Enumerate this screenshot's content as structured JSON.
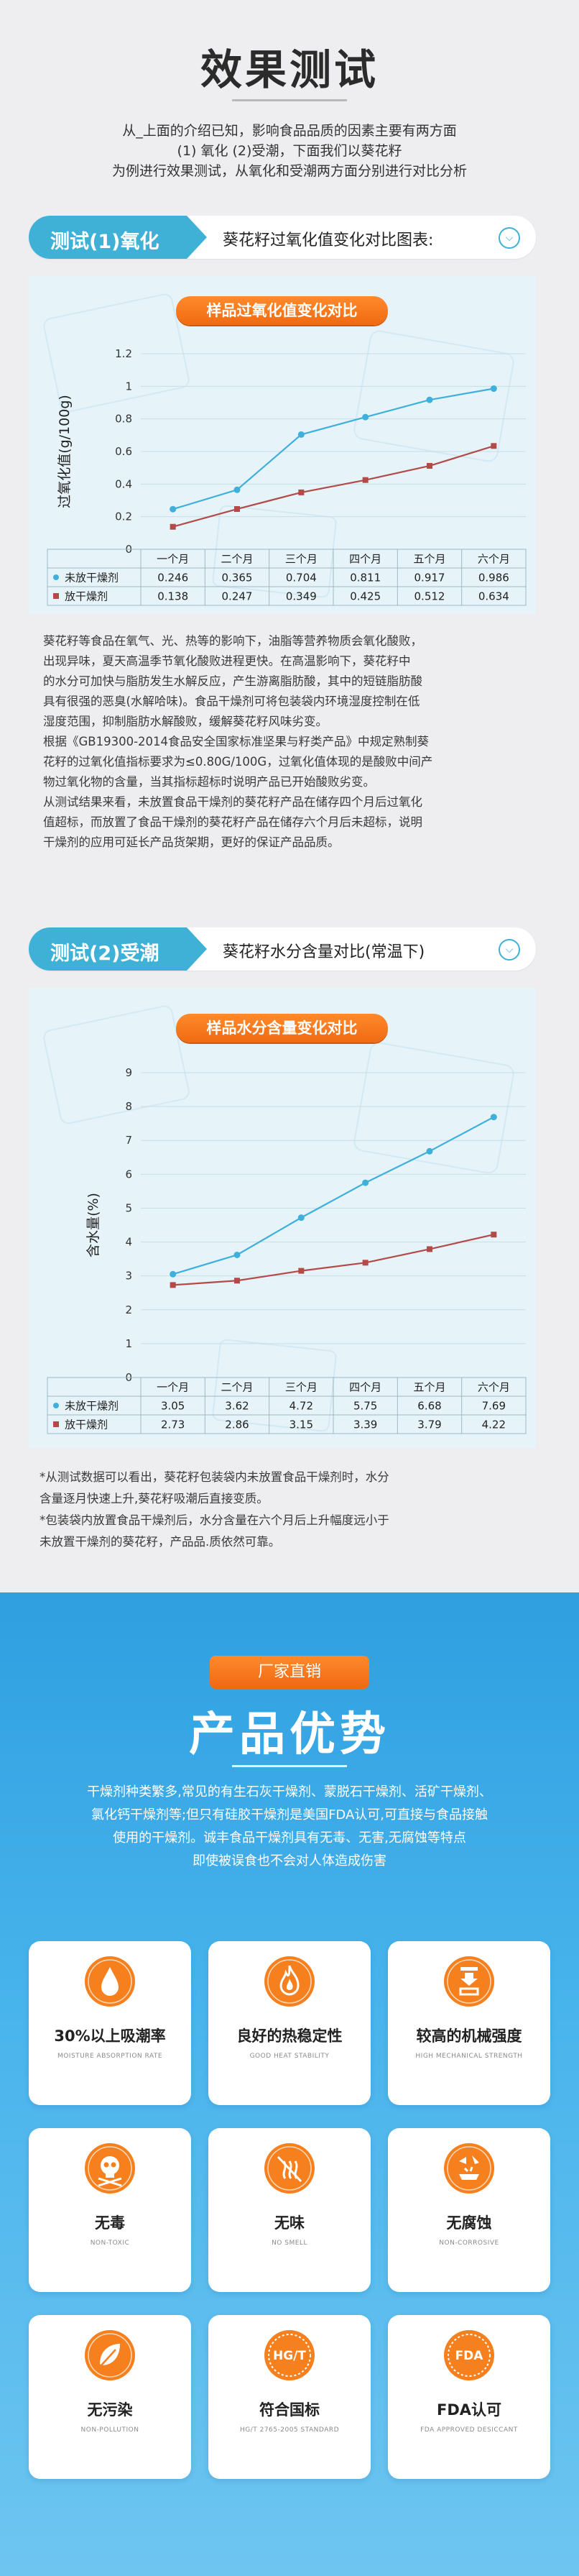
{
  "header": {
    "title": "效果测试",
    "intro_lines": [
      "从_上面的介绍已知，影响食品品质的因素主要有两方面",
      "(1) 氧化  (2)受潮，下面我们以葵花籽",
      "为例进行效果测试，从氧化和受潮两方面分别进行对比分析"
    ]
  },
  "section1": {
    "tag": "测试(1)氧化",
    "desc": "葵花籽过氧化值变化对比图表:",
    "chart_title": "样品过氧化值变化对比",
    "paragraphs": [
      "葵花籽等食品在氧气、光、热等的影响下，油脂等营养物质会氧化酸败，",
      "出现异味，夏天高温季节氧化酸败进程更快。在高温影响下，葵花籽中",
      "的水分可加快与脂肪发生水解反应，产生游离脂肪酸，其中的短链脂肪酸",
      "具有很强的恶臭(水解哈味)。食品干燥剂可将包装袋内环境湿度控制在低",
      "湿度范围，抑制脂肪水解酸败，缓解葵花籽风味劣变。",
      "根据《GB19300-2014食品安全国家标准坚果与籽类产品》中规定熟制葵",
      "花籽的过氧化值指标要求为≤0.80G/100G，过氧化值体现的是酸败中间产",
      "物过氧化物的含量，当其指标超标时说明产品已开始酸败劣变。",
      "从测试结果来看，未放置食品干燥剂的葵花籽产品在储存四个月后过氧化",
      "值超标，而放置了食品干燥剂的葵花籽产品在储存六个月后未超标，说明",
      "干燥剂的应用可延长产品货架期，更好的保证产品品质。"
    ]
  },
  "section2": {
    "tag": "测试(2)受潮",
    "desc": "葵花籽水分含量对比(常温下)",
    "chart_title": "样品水分含量变化对比",
    "notes": [
      "*从测试数据可以看出，葵花籽包装袋内未放置食品干燥剂时，水分",
      "  含量逐月快速上升,葵花籽吸潮后直接变质。",
      "*包装袋内放置食品干燥剂后，水分含量在六个月后上升幅度远小于",
      "  未放置干燥剂的葵花籽，产品品.质依然可靠。"
    ]
  },
  "chart_data": [
    {
      "type": "line",
      "title": "样品过氧化值变化对比",
      "ylabel": "过氧化值(g/100g)",
      "categories": [
        "一个月",
        "二个月",
        "三个月",
        "四个月",
        "五个月",
        "六个月"
      ],
      "ylim": [
        0,
        1.2
      ],
      "yticks": [
        "0",
        "0.2",
        "0.4",
        "0.6",
        "0.8",
        "1",
        "1.2"
      ],
      "grid": true,
      "series": [
        {
          "name": "未放干燥剂",
          "color": "#3fb0dc",
          "values": [
            0.246,
            0.365,
            0.704,
            0.811,
            0.917,
            0.986
          ],
          "labels": [
            "0.246",
            "0.365",
            "0.704",
            "0.811",
            "0.917",
            "0.986"
          ]
        },
        {
          "name": "放干燥剂",
          "color": "#b24a48",
          "values": [
            0.138,
            0.247,
            0.349,
            0.425,
            0.512,
            0.634
          ],
          "labels": [
            "0.138",
            "0.247",
            "0.349",
            "0.425",
            "0.512",
            "0.634"
          ]
        }
      ]
    },
    {
      "type": "line",
      "title": "样品水分含量变化对比",
      "ylabel": "含水量(%)",
      "categories": [
        "一个月",
        "二个月",
        "三个月",
        "四个月",
        "五个月",
        "六个月"
      ],
      "ylim": [
        0,
        9
      ],
      "yticks": [
        "0",
        "1",
        "2",
        "3",
        "4",
        "5",
        "6",
        "7",
        "8",
        "9"
      ],
      "grid": true,
      "series": [
        {
          "name": "未放干燥剂",
          "color": "#3fb0dc",
          "values": [
            3.05,
            3.62,
            4.72,
            5.75,
            6.68,
            7.69
          ],
          "labels": [
            "3.05",
            "3.62",
            "4.72",
            "5.75",
            "6.68",
            "7.69"
          ]
        },
        {
          "name": "放干燥剂",
          "color": "#b24a48",
          "values": [
            2.73,
            2.86,
            3.15,
            3.39,
            3.79,
            4.22
          ],
          "labels": [
            "2.73",
            "2.86",
            "3.15",
            "3.39",
            "3.79",
            "4.22"
          ]
        }
      ]
    }
  ],
  "advantages": {
    "badge": "厂家直销",
    "title": "产品优势",
    "intro_lines": [
      "干燥剂种类繁多,常见的有生石灰干燥剂、蒙脱石干燥剂、活矿干燥剂、",
      "氯化钙干燥剂等;但只有硅胶干燥剂是美国FDA认可,可直接与食品接触",
      "使用的干燥剂。诚丰食品干燥剂具有无毒、无害,无腐蚀等特点",
      "即使被误食也不会对人体造成伤害"
    ],
    "cards": [
      {
        "icon": "water-drop-icon",
        "cn": "30%以上吸潮率",
        "en": "MOISTURE ABSORPTION RATE"
      },
      {
        "icon": "flame-icon",
        "cn": "良好的热稳定性",
        "en": "GOOD HEAT STABILITY"
      },
      {
        "icon": "compression-icon",
        "cn": "较高的机械强度",
        "en": "HIGH MECHANICAL STRENGTH"
      },
      {
        "icon": "skull-icon",
        "cn": "无毒",
        "en": "NON-TOXIC"
      },
      {
        "icon": "no-smell-icon",
        "cn": "无味",
        "en": "NO SMELL"
      },
      {
        "icon": "corrosion-icon",
        "cn": "无腐蚀",
        "en": "NON-CORROSIVE"
      },
      {
        "icon": "leaf-icon",
        "cn": "无污染",
        "en": "NON-POLLUTION"
      },
      {
        "icon": "hgt-badge-icon",
        "cn": "符合国标",
        "en": "HG/T 2765-2005 STANDARD",
        "badge": "HG/T"
      },
      {
        "icon": "fda-badge-icon",
        "cn": "FDA认可",
        "en": "FDA APPROVED DESICCANT",
        "badge": "FDA"
      }
    ]
  }
}
